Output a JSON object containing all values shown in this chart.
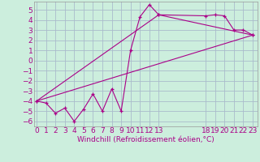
{
  "xlabel": "Windchill (Refroidissement éolien,°C)",
  "ylabel": "",
  "background_color": "#cceedd",
  "grid_color": "#aabbcc",
  "line_color": "#aa0088",
  "line1_x": [
    0,
    1,
    2,
    3,
    4,
    5,
    6,
    7,
    8,
    9,
    10,
    11,
    12,
    13,
    18,
    19,
    20,
    21,
    22,
    23
  ],
  "line1_y": [
    -4.0,
    -4.2,
    -5.2,
    -4.7,
    -6.0,
    -4.8,
    -3.3,
    -5.0,
    -2.8,
    -5.0,
    1.0,
    4.3,
    5.5,
    4.5,
    4.4,
    4.5,
    4.4,
    3.0,
    3.0,
    2.5
  ],
  "line2_x": [
    0,
    13,
    23
  ],
  "line2_y": [
    -4.0,
    4.5,
    2.5
  ],
  "line3_x": [
    0,
    23
  ],
  "line3_y": [
    -4.0,
    2.5
  ],
  "ylim": [
    -6.5,
    5.8
  ],
  "xlim": [
    -0.3,
    23.5
  ],
  "yticks": [
    -6,
    -5,
    -4,
    -3,
    -2,
    -1,
    0,
    1,
    2,
    3,
    4,
    5
  ],
  "xticks": [
    0,
    1,
    2,
    3,
    4,
    5,
    6,
    7,
    8,
    9,
    10,
    11,
    12,
    13,
    18,
    19,
    20,
    21,
    22,
    23
  ],
  "tick_fontsize": 6.5,
  "xlabel_fontsize": 6.5
}
